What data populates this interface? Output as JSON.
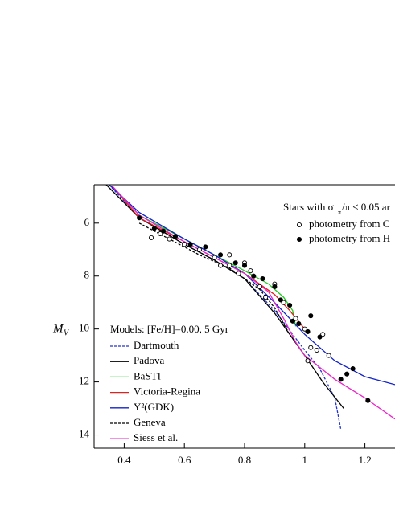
{
  "chart_data": {
    "type": "line",
    "y_label_main": "M",
    "y_label_sub": "V",
    "xlim": [
      0.3,
      1.3
    ],
    "xticks": [
      0.4,
      0.6,
      0.8,
      1.0,
      1.2
    ],
    "ylim": [
      4.55,
      14.5
    ],
    "yticks": [
      6,
      8,
      10,
      12,
      14
    ],
    "y_inverted": true,
    "model_legend_title": "Models: [Fe/H]=0.00, 5 Gyr",
    "star_legend_title": [
      "Stars with σ",
      "π",
      "/π ≤ 0.05 ar"
    ],
    "series": [
      {
        "name": "Dartmouth",
        "color": "#2233cc",
        "dash": true,
        "x": [
          0.35,
          0.45,
          0.6,
          0.7,
          0.8,
          0.9,
          1.0,
          1.05,
          1.1,
          1.12
        ],
        "values": [
          4.55,
          5.8,
          6.8,
          7.4,
          8.1,
          9.3,
          10.8,
          11.5,
          12.6,
          13.8
        ]
      },
      {
        "name": "Padova",
        "color": "#000000",
        "dash": false,
        "x": [
          0.34,
          0.45,
          0.6,
          0.7,
          0.8,
          0.9,
          1.0,
          1.06,
          1.13
        ],
        "values": [
          4.55,
          5.8,
          6.8,
          7.4,
          8.1,
          9.4,
          11.0,
          12.0,
          13.0
        ]
      },
      {
        "name": "BaSTI",
        "color": "#22cc22",
        "dash": false,
        "x": [
          0.36,
          0.45,
          0.6,
          0.7,
          0.8,
          0.88,
          0.93,
          0.96,
          0.97
        ],
        "values": [
          4.6,
          5.7,
          6.6,
          7.2,
          7.8,
          8.3,
          8.8,
          9.3,
          9.9
        ]
      },
      {
        "name": "Victoria-Regina",
        "color": "#dd2222",
        "dash": false,
        "x": [
          0.36,
          0.45,
          0.6,
          0.7,
          0.8,
          0.9,
          0.95,
          1.0
        ],
        "values": [
          4.6,
          5.8,
          6.7,
          7.3,
          7.9,
          8.7,
          9.3,
          10.0
        ]
      },
      {
        "name": "Y²(GDK)",
        "color": "#1122cc",
        "dash": false,
        "x": [
          0.35,
          0.45,
          0.6,
          0.7,
          0.8,
          0.9,
          1.0,
          1.1,
          1.2,
          1.3
        ],
        "values": [
          4.55,
          5.6,
          6.6,
          7.2,
          7.9,
          9.0,
          10.2,
          11.2,
          11.8,
          12.1
        ]
      },
      {
        "name": "Geneva",
        "color": "#000000",
        "dash": true,
        "x": [
          0.45,
          0.55,
          0.65,
          0.75,
          0.85,
          0.9,
          0.95,
          1.0
        ],
        "values": [
          6.0,
          6.6,
          7.2,
          7.7,
          8.5,
          9.2,
          10.2,
          11.0
        ]
      },
      {
        "name": "Siess et al.",
        "color": "#ee22cc",
        "dash": false,
        "x": [
          0.36,
          0.45,
          0.6,
          0.7,
          0.8,
          0.88,
          0.93,
          0.97,
          1.0,
          1.1,
          1.2,
          1.3
        ],
        "values": [
          4.6,
          5.7,
          6.7,
          7.3,
          7.9,
          8.6,
          9.6,
          10.5,
          11.0,
          11.9,
          12.6,
          13.4
        ]
      }
    ],
    "points": [
      {
        "name": "photometry from C",
        "marker": "open",
        "x": [
          0.49,
          0.52,
          0.55,
          0.6,
          0.65,
          0.7,
          0.72,
          0.75,
          0.78,
          0.82,
          0.85,
          0.87,
          0.9,
          0.93,
          0.97,
          1.0,
          1.02,
          1.04,
          1.06,
          1.08,
          1.01,
          0.75,
          0.8
        ],
        "values": [
          6.55,
          6.4,
          6.6,
          6.8,
          7.0,
          7.3,
          7.6,
          7.6,
          7.9,
          7.8,
          8.4,
          8.8,
          8.3,
          9.0,
          9.6,
          10.0,
          10.7,
          10.8,
          10.2,
          11.0,
          11.2,
          7.2,
          7.5
        ]
      },
      {
        "name": "photometry from H",
        "marker": "filled",
        "x": [
          0.45,
          0.5,
          0.53,
          0.57,
          0.62,
          0.67,
          0.72,
          0.77,
          0.8,
          0.83,
          0.86,
          0.9,
          0.92,
          0.95,
          0.98,
          1.02,
          1.05,
          1.12,
          1.14,
          1.16,
          1.21,
          1.01,
          0.96
        ],
        "values": [
          5.8,
          6.2,
          6.3,
          6.5,
          6.8,
          6.9,
          7.2,
          7.5,
          7.6,
          8.0,
          8.1,
          8.4,
          8.9,
          9.1,
          9.8,
          9.5,
          10.3,
          11.9,
          11.7,
          11.5,
          12.7,
          10.1,
          9.7
        ]
      }
    ]
  }
}
